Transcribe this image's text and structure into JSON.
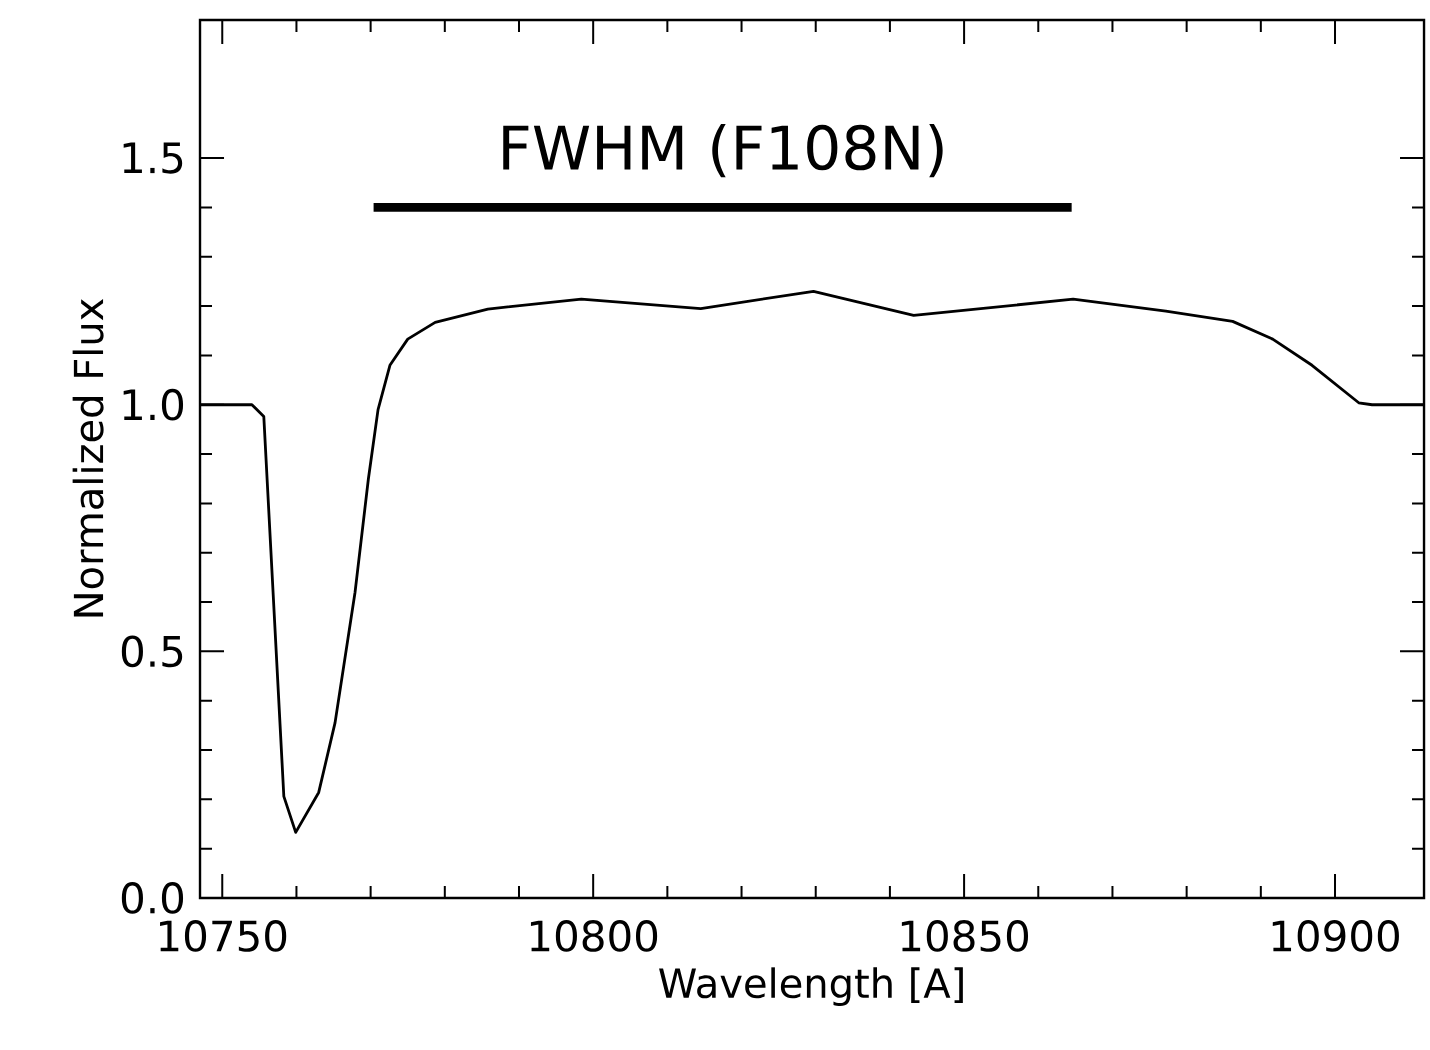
{
  "chart_data": {
    "type": "line",
    "xlabel": "Wavelength [A]",
    "ylabel": "Normalized Flux",
    "xlim": [
      10747,
      10912
    ],
    "ylim": [
      0,
      1.78
    ],
    "xticks": [
      10750,
      10800,
      10850,
      10900
    ],
    "yticks": [
      {
        "value": 0,
        "label": "0.0"
      },
      {
        "value": 0.5,
        "label": "0.5"
      },
      {
        "value": 1,
        "label": "1.0"
      },
      {
        "value": 1.5,
        "label": "1.5"
      }
    ],
    "grid": false,
    "marker": "none",
    "line_style": "solid",
    "series": [
      {
        "color": "#000000",
        "x": [
          10747,
          10754,
          10755.6,
          10758.3,
          10759.9,
          10763,
          10765.2,
          10767.9,
          10769.7,
          10771,
          10772.6,
          10775,
          10778.7,
          10785.8,
          10798.4,
          10814.5,
          10829.7,
          10843.2,
          10864.7,
          10877.2,
          10886.2,
          10891.6,
          10896.9,
          10903.2,
          10905,
          10912
        ],
        "values": [
          1.0,
          1.0,
          0.976,
          0.206,
          0.133,
          0.214,
          0.355,
          0.62,
          0.85,
          0.99,
          1.08,
          1.133,
          1.167,
          1.194,
          1.214,
          1.195,
          1.23,
          1.181,
          1.214,
          1.19,
          1.169,
          1.133,
          1.08,
          1.004,
          1.0,
          1.0
        ]
      },
      {
        "color": "#000000",
        "x": [
          10770.4,
          10864.5
        ],
        "values": [
          1.4,
          1.4
        ]
      }
    ],
    "annotations": [
      "FWHM (F108N)"
    ]
  }
}
